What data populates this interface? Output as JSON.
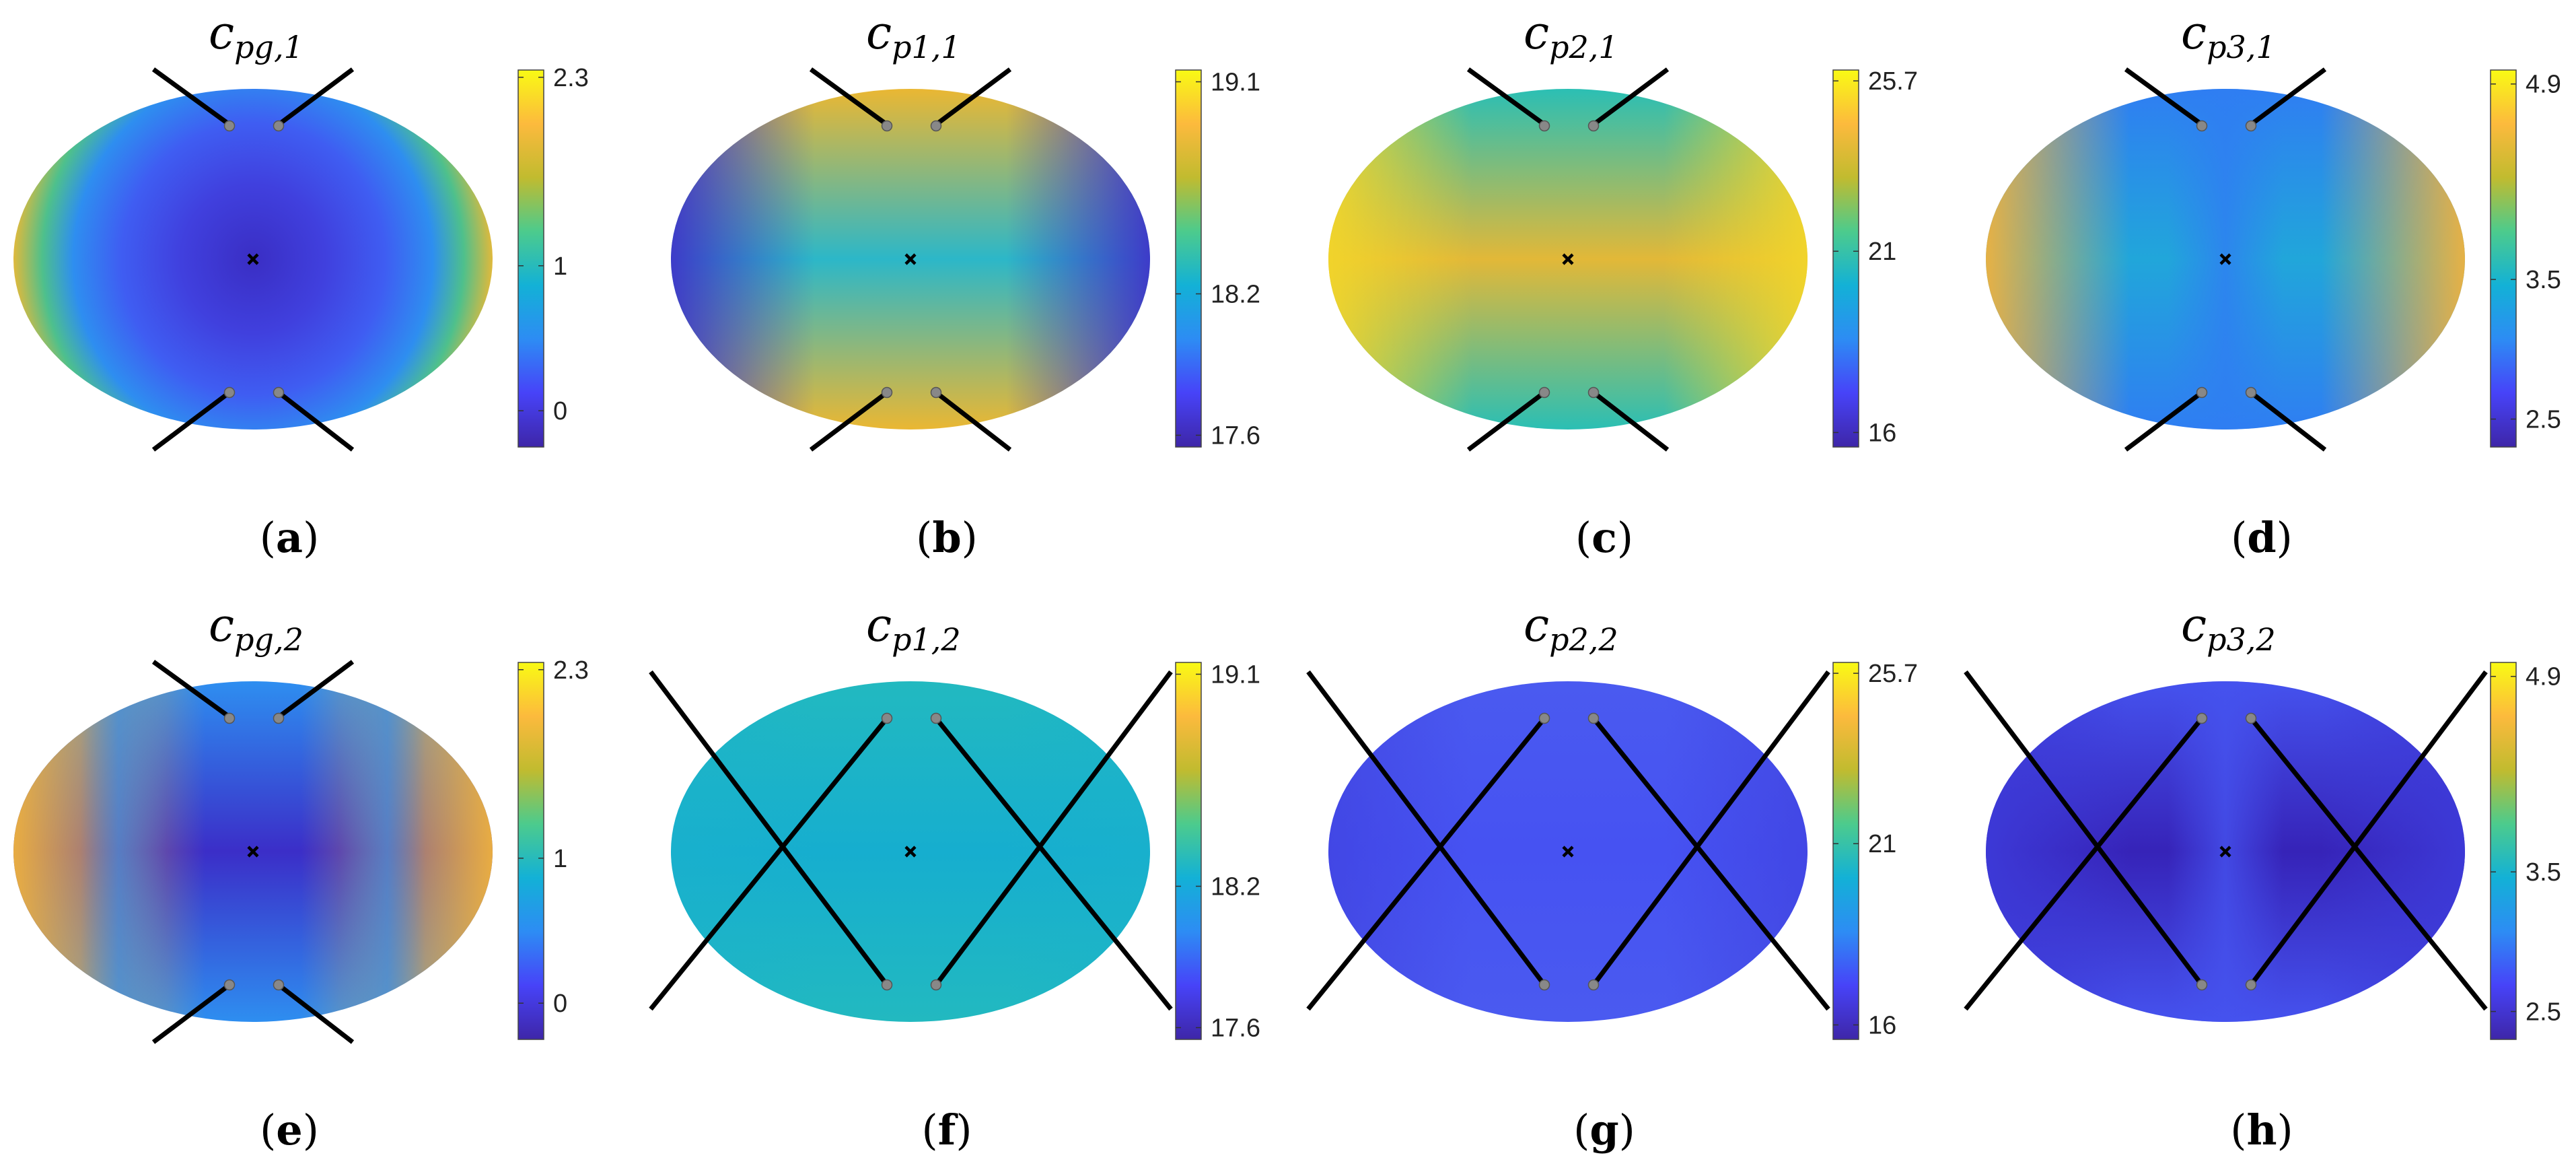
{
  "palette": [
    "#3e26a8",
    "#4743f8",
    "#2d8cf4",
    "#13b1d6",
    "#4ccb8d",
    "#c1bb2f",
    "#fcba3d",
    "#f9fa14"
  ],
  "chart_data": [
    {
      "type": "heatmap",
      "panel": "a",
      "caption_letter": "a",
      "title_main": "c",
      "title_sub": "pg,1",
      "colorbar": {
        "min": -0.25,
        "max": 2.35,
        "ticks": [
          {
            "value": 2.3,
            "label": "2.3"
          },
          {
            "value": 1,
            "label": "1"
          },
          {
            "value": 0,
            "label": "0"
          }
        ]
      },
      "field": {
        "stops": [
          {
            "r": 0.0,
            "color": "#3a2ec4"
          },
          {
            "r": 0.3,
            "color": "#4040de"
          },
          {
            "r": 0.55,
            "color": "#3f5df2"
          },
          {
            "r": 0.75,
            "color": "#2e8ef0"
          },
          {
            "r": 0.88,
            "color": "#4ec08c"
          },
          {
            "r": 1.0,
            "color": "#e0b93c"
          }
        ],
        "center_tilt": "wide"
      },
      "legs": "short"
    },
    {
      "type": "heatmap",
      "panel": "b",
      "caption_letter": "b",
      "title_main": "c",
      "title_sub": "p1,1",
      "colorbar": {
        "min": 17.55,
        "max": 19.15,
        "ticks": [
          {
            "value": 19.1,
            "label": "19.1"
          },
          {
            "value": 18.2,
            "label": "18.2"
          },
          {
            "value": 17.6,
            "label": "17.6"
          }
        ]
      },
      "field": {
        "pattern": "hourglass",
        "center": "#2cb7c8",
        "top": "#eab733",
        "sides": "#3e35c9"
      },
      "legs": "short"
    },
    {
      "type": "heatmap",
      "panel": "c",
      "caption_letter": "c",
      "title_main": "c",
      "title_sub": "p2,1",
      "colorbar": {
        "min": 15.6,
        "max": 26.0,
        "ticks": [
          {
            "value": 25.7,
            "label": "25.7"
          },
          {
            "value": 21,
            "label": "21"
          },
          {
            "value": 16,
            "label": "16"
          }
        ]
      },
      "field": {
        "pattern": "warm",
        "center": "#e2b838",
        "top": "#2bbfb4",
        "sides": "#f2d52a"
      },
      "legs": "short"
    },
    {
      "type": "heatmap",
      "panel": "d",
      "caption_letter": "d",
      "title_main": "c",
      "title_sub": "p3,1",
      "colorbar": {
        "min": 2.3,
        "max": 5.0,
        "ticks": [
          {
            "value": 4.9,
            "label": "4.9"
          },
          {
            "value": 3.5,
            "label": "3.5"
          },
          {
            "value": 2.5,
            "label": "2.5"
          }
        ]
      },
      "field": {
        "pattern": "cross",
        "center": "#21a6da",
        "top": "#2f7ef2",
        "sides": "#f1b23d"
      },
      "legs": "short"
    },
    {
      "type": "heatmap",
      "panel": "e",
      "caption_letter": "e",
      "title_main": "c",
      "title_sub": "pg,2",
      "colorbar": {
        "min": -0.25,
        "max": 2.35,
        "ticks": [
          {
            "value": 2.3,
            "label": "2.3"
          },
          {
            "value": 1,
            "label": "1"
          },
          {
            "value": 0,
            "label": "0"
          }
        ]
      },
      "field": {
        "pattern": "bands",
        "center": "#3b2ec8",
        "top": "#2e8ef0",
        "sides": "#f2b33b"
      },
      "legs": "short"
    },
    {
      "type": "heatmap",
      "panel": "f",
      "caption_letter": "f",
      "title_main": "c",
      "title_sub": "p1,2",
      "colorbar": {
        "min": 17.55,
        "max": 19.15,
        "ticks": [
          {
            "value": 19.1,
            "label": "19.1"
          },
          {
            "value": 18.2,
            "label": "18.2"
          },
          {
            "value": 17.6,
            "label": "17.6"
          }
        ]
      },
      "field": {
        "pattern": "flat",
        "center": "#16aecf",
        "top": "#22b9c0",
        "sides": "#1bb2cb"
      },
      "legs": "long"
    },
    {
      "type": "heatmap",
      "panel": "g",
      "caption_letter": "g",
      "title_main": "c",
      "title_sub": "p2,2",
      "colorbar": {
        "min": 15.6,
        "max": 26.0,
        "ticks": [
          {
            "value": 25.7,
            "label": "25.7"
          },
          {
            "value": 21,
            "label": "21"
          },
          {
            "value": 16,
            "label": "16"
          }
        ]
      },
      "field": {
        "pattern": "flat",
        "center": "#4652f2",
        "top": "#4a5af0",
        "sides": "#3d3bd8"
      },
      "legs": "long"
    },
    {
      "type": "heatmap",
      "panel": "h",
      "caption_letter": "h",
      "title_main": "c",
      "title_sub": "p3,2",
      "colorbar": {
        "min": 2.3,
        "max": 5.0,
        "ticks": [
          {
            "value": 4.9,
            "label": "4.9"
          },
          {
            "value": 3.5,
            "label": "3.5"
          },
          {
            "value": 2.5,
            "label": "2.5"
          }
        ]
      },
      "field": {
        "pattern": "diamond",
        "center": "#3623b8",
        "top": "#4552ee",
        "sides": "#3d3ad8"
      },
      "legs": "long"
    }
  ]
}
